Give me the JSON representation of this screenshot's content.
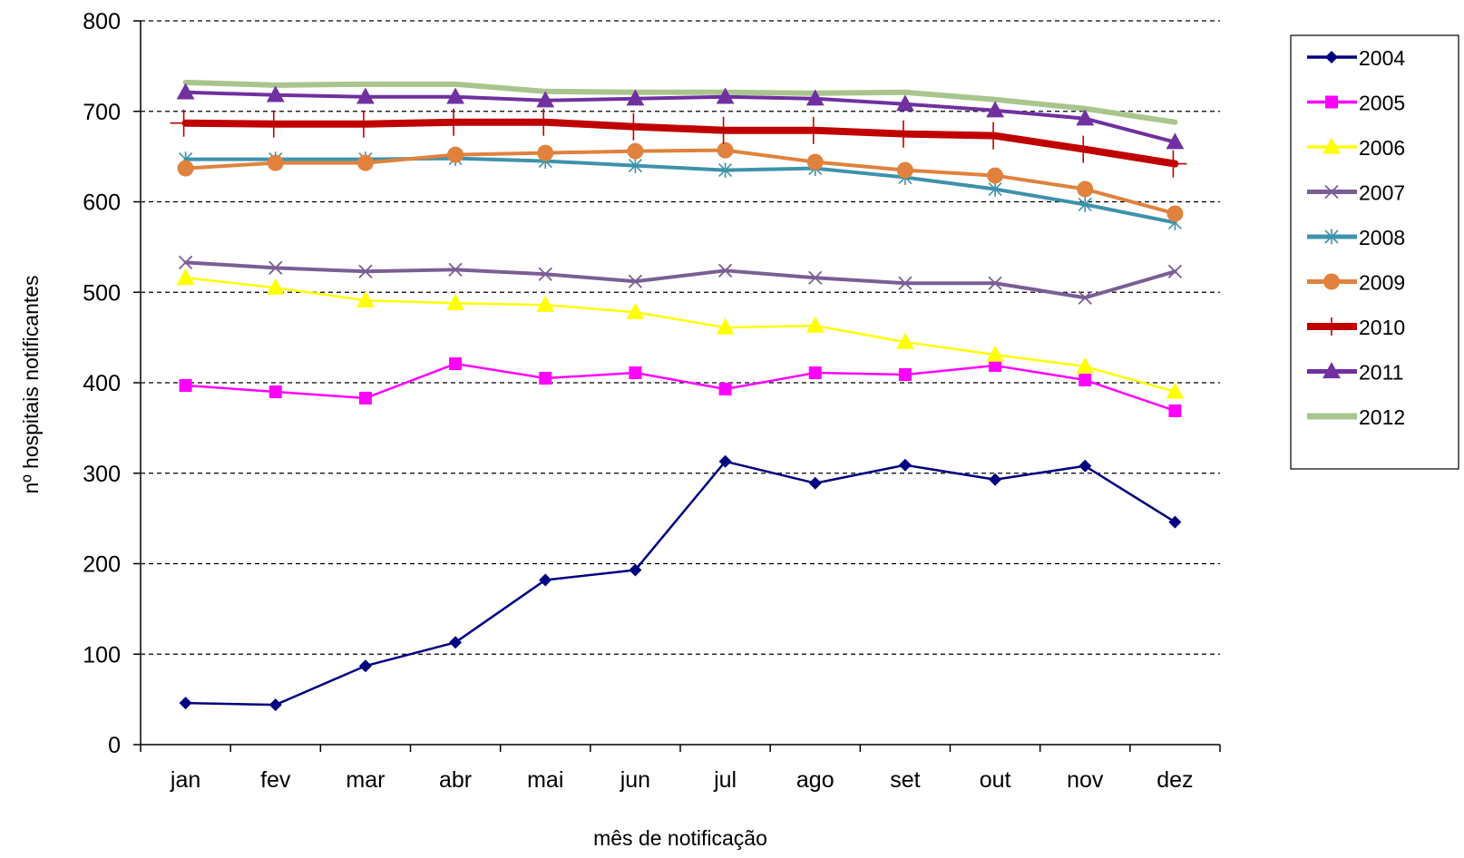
{
  "chart_data": {
    "type": "line",
    "title": "",
    "xlabel": "mês de notificação",
    "ylabel": "nº hospitais notificantes",
    "ylim": [
      0,
      800
    ],
    "yticks": [
      0,
      100,
      200,
      300,
      400,
      500,
      600,
      700,
      800
    ],
    "grid": "horizontal dashed",
    "legend": "right",
    "categories": [
      "jan",
      "fev",
      "mar",
      "abr",
      "mai",
      "jun",
      "jul",
      "ago",
      "set",
      "out",
      "nov",
      "dez"
    ],
    "series": [
      {
        "name": "2004",
        "color": "#000080",
        "marker": "diamond",
        "width": 2.5,
        "values": [
          46,
          44,
          87,
          113,
          182,
          193,
          313,
          289,
          309,
          293,
          308,
          246
        ]
      },
      {
        "name": "2005",
        "color": "#FF00FF",
        "marker": "square",
        "width": 2.5,
        "values": [
          397,
          390,
          383,
          421,
          405,
          411,
          393,
          411,
          409,
          419,
          403,
          369
        ]
      },
      {
        "name": "2006",
        "color": "#FFFF00",
        "marker": "triangle",
        "width": 2.5,
        "values": [
          516,
          505,
          491,
          488,
          486,
          478,
          461,
          463,
          445,
          431,
          418,
          390
        ]
      },
      {
        "name": "2007",
        "color": "#7B5E94",
        "marker": "x",
        "width": 4,
        "values": [
          533,
          527,
          523,
          525,
          520,
          512,
          524,
          516,
          510,
          510,
          494,
          523
        ]
      },
      {
        "name": "2008",
        "color": "#3E92AB",
        "marker": "asterisk",
        "width": 4,
        "values": [
          647,
          647,
          647,
          648,
          645,
          640,
          635,
          637,
          627,
          614,
          597,
          577
        ]
      },
      {
        "name": "2009",
        "color": "#E0823D",
        "marker": "circle",
        "width": 4,
        "values": [
          637,
          643,
          643,
          652,
          654,
          656,
          657,
          644,
          635,
          629,
          614,
          587
        ]
      },
      {
        "name": "2010",
        "color": "#C00000",
        "marker": "plus",
        "width": 8,
        "values": [
          687,
          686,
          686,
          688,
          688,
          683,
          679,
          679,
          675,
          673,
          658,
          642
        ]
      },
      {
        "name": "2011",
        "color": "#7030A0",
        "marker": "triangle",
        "width": 4,
        "values": [
          721,
          718,
          716,
          716,
          712,
          714,
          716,
          714,
          708,
          701,
          692,
          666
        ]
      },
      {
        "name": "2012",
        "color": "#A8C58D",
        "marker": "none",
        "width": 6,
        "values": [
          732,
          729,
          730,
          730,
          722,
          721,
          721,
          720,
          721,
          713,
          703,
          688
        ]
      }
    ]
  }
}
